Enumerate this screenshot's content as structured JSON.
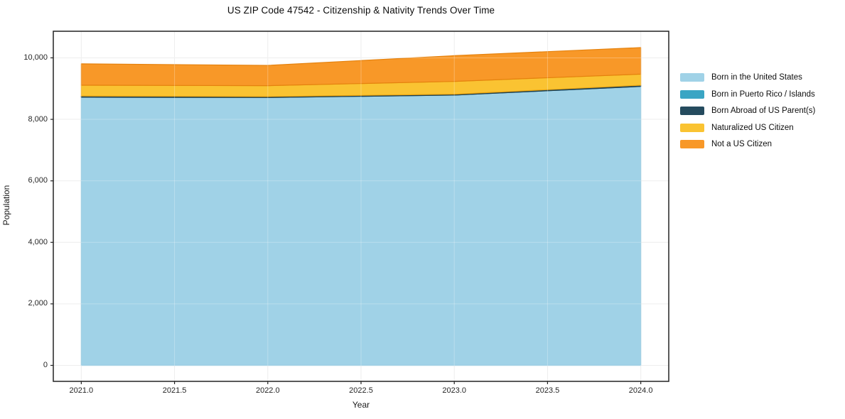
{
  "chart_data": {
    "type": "area",
    "stacked": true,
    "title": "US ZIP Code 47542 - Citizenship & Nativity Trends Over Time",
    "xlabel": "Year",
    "ylabel": "Population",
    "x": [
      2021,
      2022,
      2023,
      2024
    ],
    "xlim": [
      2020.85,
      2024.15
    ],
    "ylim": [
      -520,
      10865
    ],
    "grid": true,
    "legend_position": "right-outside",
    "xticks": {
      "values": [
        2021.0,
        2021.5,
        2022.0,
        2022.5,
        2023.0,
        2023.5,
        2024.0
      ],
      "labels": [
        "2021.0",
        "2021.5",
        "2022.0",
        "2022.5",
        "2023.0",
        "2023.5",
        "2024.0"
      ]
    },
    "yticks": {
      "values": [
        0,
        2000,
        4000,
        6000,
        8000,
        10000
      ],
      "labels": [
        "0",
        "2,000",
        "4,000",
        "6,000",
        "8,000",
        "10,000"
      ]
    },
    "series": [
      {
        "name": "Born in the United States",
        "color": "#a0d2e7",
        "edge": "#88c2dc",
        "values": [
          8720,
          8710,
          8790,
          9070
        ]
      },
      {
        "name": "Born in Puerto Rico / Islands",
        "color": "#3aa5c4",
        "edge": "#2f8dab",
        "values": [
          0,
          0,
          0,
          0
        ]
      },
      {
        "name": "Born Abroad of US Parent(s)",
        "color": "#254b5e",
        "edge": "#1d3d4d",
        "values": [
          40,
          30,
          30,
          40
        ]
      },
      {
        "name": "Naturalized US Citizen",
        "color": "#fac332",
        "edge": "#eda711",
        "values": [
          350,
          355,
          415,
          360
        ]
      },
      {
        "name": "Not a US Citizen",
        "color": "#f89828",
        "edge": "#e5820e",
        "values": [
          695,
          660,
          835,
          865
        ]
      }
    ],
    "totals_by_year": [
      9805,
      9755,
      10070,
      10335
    ],
    "spine_color": "#222222",
    "grid_color": "#e8e8e8"
  }
}
